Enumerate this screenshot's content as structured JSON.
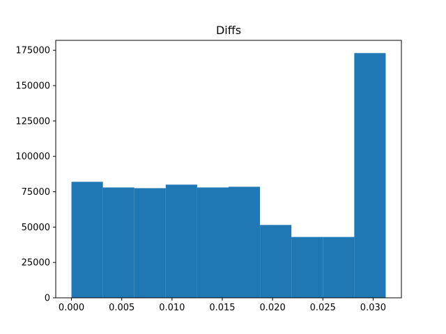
{
  "chart_data": {
    "type": "bar",
    "title": "Diffs",
    "xlabel": "",
    "ylabel": "",
    "bin_edges": [
      0.0,
      0.003125,
      0.00625,
      0.009375,
      0.0125,
      0.015625,
      0.01875,
      0.021875,
      0.025,
      0.028125,
      0.03125
    ],
    "values": [
      82000,
      78000,
      77500,
      80000,
      78000,
      78500,
      51500,
      43000,
      43000,
      173000
    ],
    "xlim": [
      -0.0015625,
      0.0328125
    ],
    "ylim": [
      0,
      182000
    ],
    "x_ticks": [
      0.0,
      0.005,
      0.01,
      0.015,
      0.02,
      0.025,
      0.03
    ],
    "x_tick_labels": [
      "0.000",
      "0.005",
      "0.010",
      "0.015",
      "0.020",
      "0.025",
      "0.030"
    ],
    "y_ticks": [
      0,
      25000,
      50000,
      75000,
      100000,
      125000,
      150000,
      175000
    ],
    "y_tick_labels": [
      "0",
      "25000",
      "50000",
      "75000",
      "100000",
      "125000",
      "150000",
      "175000"
    ],
    "bar_color": "#1f77b4",
    "grid": false,
    "legend": false
  }
}
